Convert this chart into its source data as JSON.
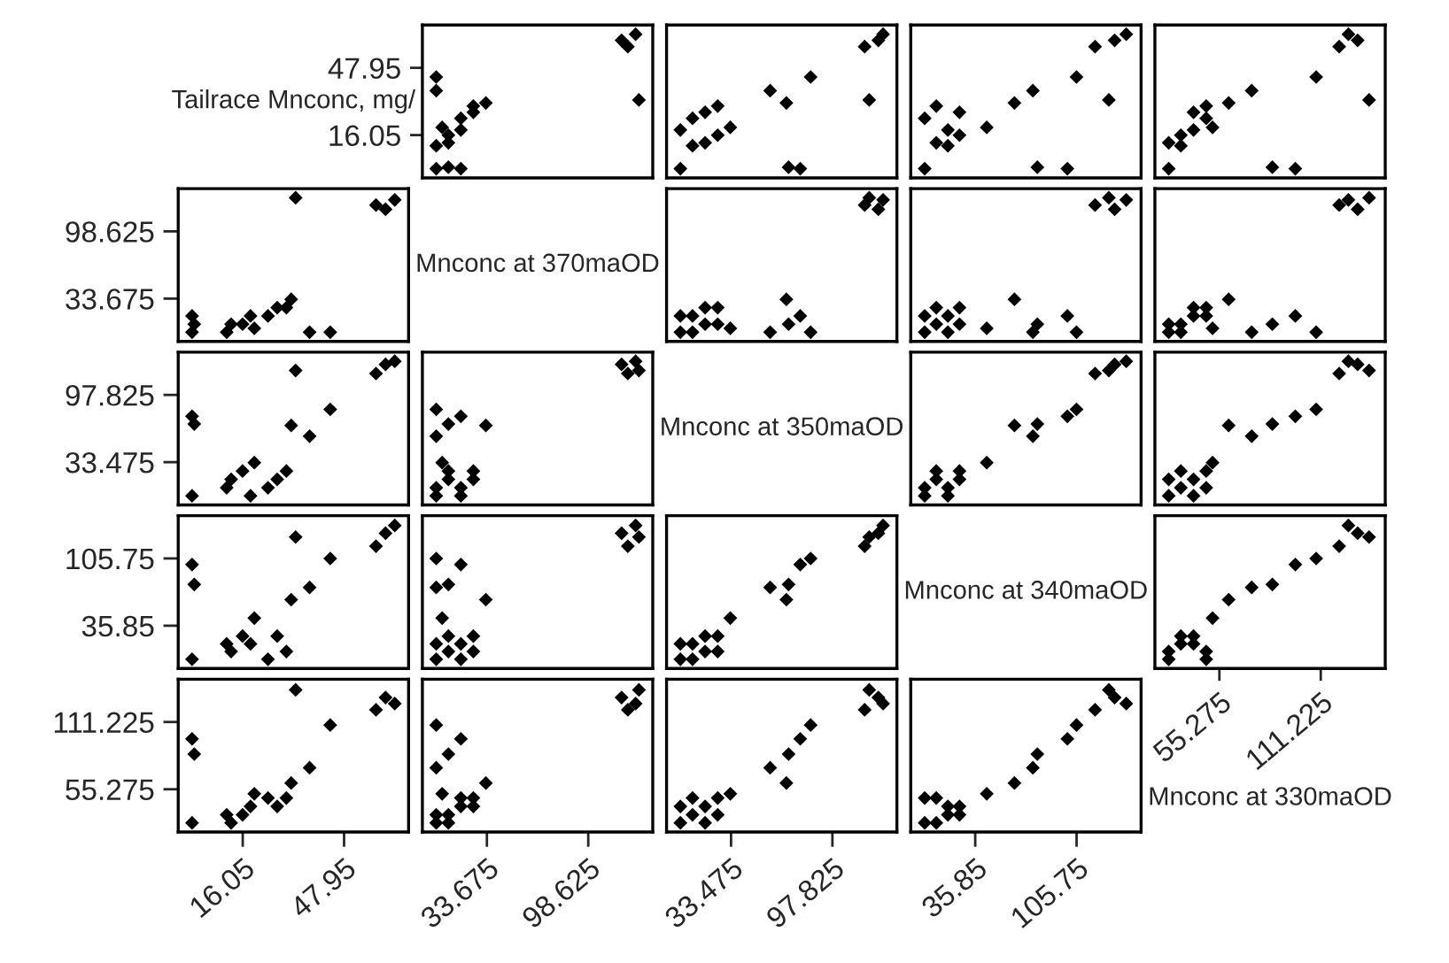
{
  "chart_data": [
    {
      "type": "other",
      "title": "Tailrace Mnconc, mg/"
    },
    {
      "type": "scatter",
      "x": [
        17,
        9,
        1.2,
        1.2,
        9,
        9,
        17,
        5,
        17,
        25,
        25,
        33,
        131.1,
        1.2,
        1.2,
        120,
        129,
        124
      ],
      "values": [
        0.1,
        0.8,
        0.1,
        11.0,
        12.4,
        16.0,
        18.5,
        19.7,
        24.0,
        26.9,
        29.8,
        31.3,
        32.7,
        37.1,
        43.6,
        61.0,
        63.9,
        58.0
      ],
      "color": "#000000",
      "marker": "diamond",
      "xlim": [
        -7.66,
        139.96
      ],
      "ylim": [
        -4.25,
        68.25
      ],
      "xticks": [
        33.675,
        98.625
      ],
      "yticks": [
        16.05,
        47.95
      ],
      "tick_labels": "y"
    },
    {
      "type": "scatter",
      "x": [
        77.4,
        70.0,
        1.3,
        9,
        17,
        25,
        1.3,
        33,
        9,
        17,
        25,
        68.6,
        121.2,
        58.3,
        84,
        127,
        130,
        118.3
      ],
      "values": [
        0.1,
        0.8,
        0.1,
        11.0,
        12.4,
        16.0,
        18.5,
        19.7,
        24.0,
        26.9,
        29.8,
        31.3,
        32.7,
        37.1,
        43.6,
        61.0,
        63.9,
        58.0
      ],
      "color": "#000000",
      "marker": "diamond",
      "xlim": [
        -7.48,
        138.78
      ],
      "ylim": [
        -4.25,
        68.25
      ],
      "xticks": [
        33.475,
        97.825
      ],
      "yticks": [
        16.05,
        47.95
      ],
      "tick_labels": false
    },
    {
      "type": "scatter",
      "x": [
        99.4,
        78.7,
        1,
        17,
        9,
        25,
        17,
        43.8,
        1,
        25,
        9,
        62.9,
        128,
        75.6,
        105.7,
        132,
        140,
        118.5
      ],
      "values": [
        0.1,
        0.8,
        0.1,
        11.0,
        12.4,
        16.0,
        18.5,
        19.7,
        24.0,
        26.9,
        29.8,
        31.3,
        32.7,
        37.1,
        43.6,
        61.0,
        63.9,
        58.0
      ],
      "color": "#000000",
      "marker": "diamond",
      "xlim": [
        -8.63,
        150.23
      ],
      "ylim": [
        -4.25,
        68.25
      ],
      "xticks": [
        35.85,
        105.75
      ],
      "yticks": [
        16.05,
        47.95
      ],
      "tick_labels": false
    },
    {
      "type": "scatter",
      "x": [
        97.2,
        84.5,
        27.3,
        34,
        27.3,
        34,
        41,
        51.5,
        48,
        41,
        48,
        60.4,
        137.9,
        73.1,
        108.7,
        131.6,
        126.5,
        121.4
      ],
      "values": [
        0.1,
        0.8,
        0.1,
        11.0,
        12.4,
        16.0,
        18.5,
        19.7,
        24.0,
        26.9,
        29.8,
        31.3,
        32.7,
        37.1,
        43.6,
        61.0,
        63.9,
        58.0
      ],
      "color": "#000000",
      "marker": "diamond",
      "xlim": [
        19.67,
        146.83
      ],
      "ylim": [
        -4.25,
        68.25
      ],
      "xticks": [
        55.275,
        111.225
      ],
      "yticks": [
        16.05,
        47.95
      ],
      "tick_labels": false
    },
    {
      "type": "scatter",
      "x": [
        0.1,
        0.8,
        0.1,
        11.0,
        12.4,
        16.0,
        18.5,
        19.7,
        24.0,
        26.9,
        29.8,
        31.3,
        32.7,
        37.1,
        43.6,
        61.0,
        63.9,
        58.0
      ],
      "values": [
        17,
        9,
        1.2,
        1.2,
        9,
        9,
        17,
        5,
        17,
        25,
        25,
        33,
        131.1,
        1.2,
        1.2,
        120,
        129,
        124
      ],
      "color": "#000000",
      "marker": "diamond",
      "xlim": [
        -4.25,
        68.25
      ],
      "ylim": [
        -7.66,
        139.96
      ],
      "xticks": [
        16.05,
        47.95
      ],
      "yticks": [
        33.675,
        98.625
      ],
      "tick_labels": "y"
    },
    {
      "type": "other",
      "title": "Mnconc at 370maOD"
    },
    {
      "type": "scatter",
      "x": [
        77.4,
        70.0,
        1.3,
        9,
        17,
        25,
        1.3,
        33,
        9,
        17,
        25,
        68.6,
        121.2,
        58.3,
        84,
        127,
        130,
        118.3
      ],
      "values": [
        17,
        9,
        1.2,
        1.2,
        9,
        9,
        17,
        5,
        17,
        25,
        25,
        33,
        131.1,
        1.2,
        1.2,
        120,
        129,
        124
      ],
      "color": "#000000",
      "marker": "diamond",
      "xlim": [
        -7.48,
        138.78
      ],
      "ylim": [
        -7.66,
        139.96
      ],
      "xticks": [
        33.475,
        97.825
      ],
      "yticks": [
        33.675,
        98.625
      ],
      "tick_labels": false
    },
    {
      "type": "scatter",
      "x": [
        99.4,
        78.7,
        1,
        17,
        9,
        25,
        17,
        43.8,
        1,
        25,
        9,
        62.9,
        128,
        75.6,
        105.7,
        132,
        140,
        118.5
      ],
      "values": [
        17,
        9,
        1.2,
        1.2,
        9,
        9,
        17,
        5,
        17,
        25,
        25,
        33,
        131.1,
        1.2,
        1.2,
        120,
        129,
        124
      ],
      "color": "#000000",
      "marker": "diamond",
      "xlim": [
        -8.63,
        150.23
      ],
      "ylim": [
        -7.66,
        139.96
      ],
      "xticks": [
        35.85,
        105.75
      ],
      "yticks": [
        33.675,
        98.625
      ],
      "tick_labels": false
    },
    {
      "type": "scatter",
      "x": [
        97.2,
        84.5,
        27.3,
        34,
        27.3,
        34,
        41,
        51.5,
        48,
        41,
        48,
        60.4,
        137.9,
        73.1,
        108.7,
        131.6,
        126.5,
        121.4
      ],
      "values": [
        17,
        9,
        1.2,
        1.2,
        9,
        9,
        17,
        5,
        17,
        25,
        25,
        33,
        131.1,
        1.2,
        1.2,
        120,
        129,
        124
      ],
      "color": "#000000",
      "marker": "diamond",
      "xlim": [
        19.67,
        146.83
      ],
      "ylim": [
        -7.66,
        139.96
      ],
      "xticks": [
        55.275,
        111.225
      ],
      "yticks": [
        33.675,
        98.625
      ],
      "tick_labels": false
    },
    {
      "type": "scatter",
      "x": [
        0.1,
        0.8,
        0.1,
        11.0,
        12.4,
        16.0,
        18.5,
        19.7,
        24.0,
        26.9,
        29.8,
        31.3,
        32.7,
        37.1,
        43.6,
        61.0,
        63.9,
        58.0
      ],
      "values": [
        77.4,
        70.0,
        1.3,
        9,
        17,
        25,
        1.3,
        33,
        9,
        17,
        25,
        68.6,
        121.2,
        58.3,
        84,
        127,
        130,
        118.3
      ],
      "color": "#000000",
      "marker": "diamond",
      "xlim": [
        -4.25,
        68.25
      ],
      "ylim": [
        -7.48,
        138.78
      ],
      "xticks": [
        16.05,
        47.95
      ],
      "yticks": [
        33.475,
        97.825
      ],
      "tick_labels": "y"
    },
    {
      "type": "scatter",
      "x": [
        17,
        9,
        1.2,
        1.2,
        9,
        9,
        17,
        5,
        17,
        25,
        25,
        33,
        131.1,
        1.2,
        1.2,
        120,
        129,
        124
      ],
      "values": [
        77.4,
        70.0,
        1.3,
        9,
        17,
        25,
        1.3,
        33,
        9,
        17,
        25,
        68.6,
        121.2,
        58.3,
        84,
        127,
        130,
        118.3
      ],
      "color": "#000000",
      "marker": "diamond",
      "xlim": [
        -7.66,
        139.96
      ],
      "ylim": [
        -7.48,
        138.78
      ],
      "xticks": [
        33.675,
        98.625
      ],
      "yticks": [
        33.475,
        97.825
      ],
      "tick_labels": false
    },
    {
      "type": "other",
      "title": "Mnconc at 350maOD"
    },
    {
      "type": "scatter",
      "x": [
        99.4,
        78.7,
        1,
        17,
        9,
        25,
        17,
        43.8,
        1,
        25,
        9,
        62.9,
        128,
        75.6,
        105.7,
        132,
        140,
        118.5
      ],
      "values": [
        77.4,
        70.0,
        1.3,
        9,
        17,
        25,
        1.3,
        33,
        9,
        17,
        25,
        68.6,
        121.2,
        58.3,
        84,
        127,
        130,
        118.3
      ],
      "color": "#000000",
      "marker": "diamond",
      "xlim": [
        -8.63,
        150.23
      ],
      "ylim": [
        -7.48,
        138.78
      ],
      "xticks": [
        35.85,
        105.75
      ],
      "yticks": [
        33.475,
        97.825
      ],
      "tick_labels": false
    },
    {
      "type": "scatter",
      "x": [
        97.2,
        84.5,
        27.3,
        34,
        27.3,
        34,
        41,
        51.5,
        48,
        41,
        48,
        60.4,
        137.9,
        73.1,
        108.7,
        131.6,
        126.5,
        121.4
      ],
      "values": [
        77.4,
        70.0,
        1.3,
        9,
        17,
        25,
        1.3,
        33,
        9,
        17,
        25,
        68.6,
        121.2,
        58.3,
        84,
        127,
        130,
        118.3
      ],
      "color": "#000000",
      "marker": "diamond",
      "xlim": [
        19.67,
        146.83
      ],
      "ylim": [
        -7.48,
        138.78
      ],
      "xticks": [
        55.275,
        111.225
      ],
      "yticks": [
        33.475,
        97.825
      ],
      "tick_labels": false
    },
    {
      "type": "scatter",
      "x": [
        0.1,
        0.8,
        0.1,
        11.0,
        12.4,
        16.0,
        18.5,
        19.7,
        24.0,
        26.9,
        29.8,
        31.3,
        32.7,
        37.1,
        43.6,
        61.0,
        63.9,
        58.0
      ],
      "values": [
        99.4,
        78.7,
        1,
        17,
        9,
        25,
        17,
        43.8,
        1,
        25,
        9,
        62.9,
        128,
        75.6,
        105.7,
        132,
        140,
        118.5
      ],
      "color": "#000000",
      "marker": "diamond",
      "xlim": [
        -4.25,
        68.25
      ],
      "ylim": [
        -8.63,
        150.23
      ],
      "xticks": [
        16.05,
        47.95
      ],
      "yticks": [
        35.85,
        105.75
      ],
      "tick_labels": "y"
    },
    {
      "type": "scatter",
      "x": [
        17,
        9,
        1.2,
        1.2,
        9,
        9,
        17,
        5,
        17,
        25,
        25,
        33,
        131.1,
        1.2,
        1.2,
        120,
        129,
        124
      ],
      "values": [
        99.4,
        78.7,
        1,
        17,
        9,
        25,
        17,
        43.8,
        1,
        25,
        9,
        62.9,
        128,
        75.6,
        105.7,
        132,
        140,
        118.5
      ],
      "color": "#000000",
      "marker": "diamond",
      "xlim": [
        -7.66,
        139.96
      ],
      "ylim": [
        -8.63,
        150.23
      ],
      "xticks": [
        33.675,
        98.625
      ],
      "yticks": [
        35.85,
        105.75
      ],
      "tick_labels": false
    },
    {
      "type": "scatter",
      "x": [
        77.4,
        70.0,
        1.3,
        9,
        17,
        25,
        1.3,
        33,
        9,
        17,
        25,
        68.6,
        121.2,
        58.3,
        84,
        127,
        130,
        118.3
      ],
      "values": [
        99.4,
        78.7,
        1,
        17,
        9,
        25,
        17,
        43.8,
        1,
        25,
        9,
        62.9,
        128,
        75.6,
        105.7,
        132,
        140,
        118.5
      ],
      "color": "#000000",
      "marker": "diamond",
      "xlim": [
        -7.48,
        138.78
      ],
      "ylim": [
        -8.63,
        150.23
      ],
      "xticks": [
        33.475,
        97.825
      ],
      "yticks": [
        35.85,
        105.75
      ],
      "tick_labels": false
    },
    {
      "type": "other",
      "title": "Mnconc at 340maOD"
    },
    {
      "type": "scatter",
      "x": [
        97.2,
        84.5,
        27.3,
        34,
        27.3,
        34,
        41,
        51.5,
        48,
        41,
        48,
        60.4,
        137.9,
        73.1,
        108.7,
        131.6,
        126.5,
        121.4
      ],
      "values": [
        99.4,
        78.7,
        1,
        17,
        9,
        25,
        17,
        43.8,
        1,
        25,
        9,
        62.9,
        128,
        75.6,
        105.7,
        132,
        140,
        118.5
      ],
      "color": "#000000",
      "marker": "diamond",
      "xlim": [
        19.67,
        146.83
      ],
      "ylim": [
        -8.63,
        150.23
      ],
      "xticks": [
        55.275,
        111.225
      ],
      "yticks": [
        35.85,
        105.75
      ],
      "tick_labels": "x"
    },
    {
      "type": "scatter",
      "x": [
        0.1,
        0.8,
        0.1,
        11.0,
        12.4,
        16.0,
        18.5,
        19.7,
        24.0,
        26.9,
        29.8,
        31.3,
        32.7,
        37.1,
        43.6,
        61.0,
        63.9,
        58.0
      ],
      "values": [
        97.2,
        84.5,
        27.3,
        34,
        27.3,
        34,
        41,
        51.5,
        48,
        41,
        48,
        60.4,
        137.9,
        73.1,
        108.7,
        131.6,
        126.5,
        121.4
      ],
      "color": "#000000",
      "marker": "diamond",
      "xlim": [
        -4.25,
        68.25
      ],
      "ylim": [
        19.67,
        146.83
      ],
      "xticks": [
        16.05,
        47.95
      ],
      "yticks": [
        55.275,
        111.225
      ]
    },
    {
      "type": "scatter",
      "x": [
        17,
        9,
        1.2,
        1.2,
        9,
        9,
        17,
        5,
        17,
        25,
        25,
        33,
        131.1,
        1.2,
        1.2,
        120,
        129,
        124
      ],
      "values": [
        97.2,
        84.5,
        27.3,
        34,
        27.3,
        34,
        41,
        51.5,
        48,
        41,
        48,
        60.4,
        137.9,
        73.1,
        108.7,
        131.6,
        126.5,
        121.4
      ],
      "color": "#000000",
      "marker": "diamond",
      "xlim": [
        -7.66,
        139.96
      ],
      "ylim": [
        19.67,
        146.83
      ],
      "xticks": [
        33.675,
        98.625
      ],
      "yticks": [
        55.275,
        111.225
      ],
      "tick_labels": "x"
    },
    {
      "type": "scatter",
      "x": [
        77.4,
        70.0,
        1.3,
        9,
        17,
        25,
        1.3,
        33,
        9,
        17,
        25,
        68.6,
        121.2,
        58.3,
        84,
        127,
        130,
        118.3
      ],
      "values": [
        97.2,
        84.5,
        27.3,
        34,
        27.3,
        34,
        41,
        51.5,
        48,
        41,
        48,
        60.4,
        137.9,
        73.1,
        108.7,
        131.6,
        126.5,
        121.4
      ],
      "color": "#000000",
      "marker": "diamond",
      "xlim": [
        -7.48,
        138.78
      ],
      "ylim": [
        19.67,
        146.83
      ],
      "xticks": [
        33.475,
        97.825
      ],
      "yticks": [
        55.275,
        111.225
      ],
      "tick_labels": "x"
    },
    {
      "type": "scatter",
      "x": [
        99.4,
        78.7,
        1,
        17,
        9,
        25,
        17,
        43.8,
        1,
        25,
        9,
        62.9,
        128,
        75.6,
        105.7,
        132,
        140,
        118.5
      ],
      "values": [
        97.2,
        84.5,
        27.3,
        34,
        27.3,
        34,
        41,
        51.5,
        48,
        41,
        48,
        60.4,
        137.9,
        73.1,
        108.7,
        131.6,
        126.5,
        121.4
      ],
      "color": "#000000",
      "marker": "diamond",
      "xlim": [
        -8.63,
        150.23
      ],
      "ylim": [
        19.67,
        146.83
      ],
      "xticks": [
        35.85,
        105.75
      ],
      "yticks": [
        55.275,
        111.225
      ],
      "tick_labels": "x"
    },
    {
      "type": "other",
      "title": "Mnconc at 330maOD"
    }
  ]
}
